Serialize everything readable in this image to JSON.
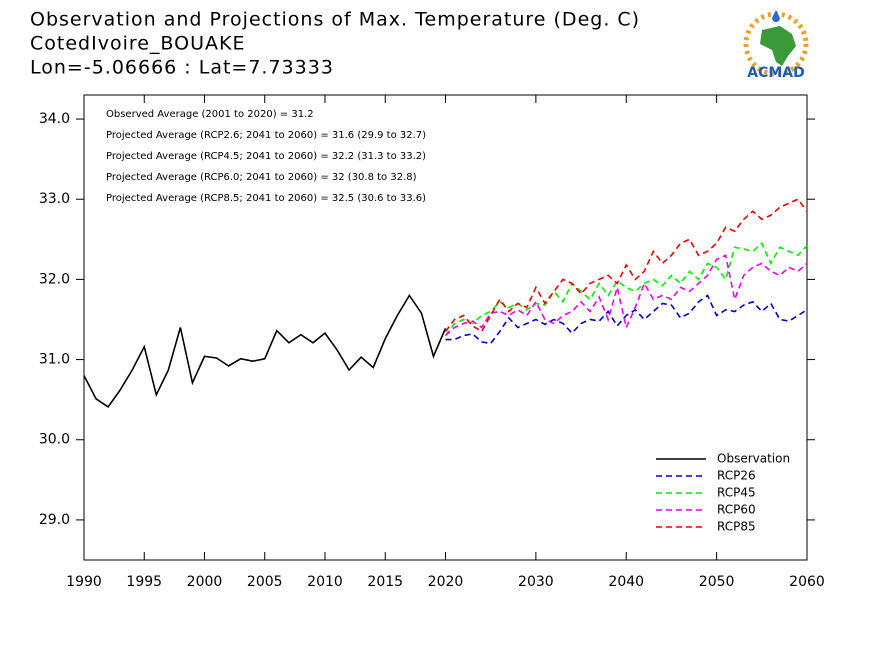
{
  "chart_data": {
    "type": "line",
    "title": "Observation and Projections of Max. Temperature (Deg. C)",
    "subtitle": "CotedIvoire_BOUAKE",
    "location": "Lon=-5.06666 : Lat=7.73333",
    "logo": "ACMAD",
    "annotations": [
      "Observed Average (2001 to 2020) = 31.2",
      "Projected Average (RCP2.6; 2041 to 2060) = 31.6 (29.9 to 32.7)",
      "Projected Average (RCP4.5; 2041 to 2060) = 32.2 (31.3 to 33.2)",
      "Projected Average (RCP6.0; 2041 to 2060) = 32 (30.8 to 32.8)",
      "Projected Average (RCP8.5; 2041 to 2060) = 32.5 (30.6 to 33.6)"
    ],
    "xlim": [
      1990,
      2060
    ],
    "xsplit": 2020,
    "xticks": [
      1990,
      1995,
      2000,
      2005,
      2010,
      2015,
      2020,
      2030,
      2040,
      2050,
      2060
    ],
    "ylim": [
      28.5,
      34.3
    ],
    "yticks": [
      {
        "value": 29,
        "label": "29.0"
      },
      {
        "value": 30,
        "label": "30.0"
      },
      {
        "value": 31,
        "label": "31.0"
      },
      {
        "value": 32,
        "label": "32.0"
      },
      {
        "value": 33,
        "label": "33.0"
      },
      {
        "value": 34,
        "label": "34.0"
      }
    ],
    "grid": false,
    "legend": "lower right",
    "series": [
      {
        "name": "Observation",
        "color": "#000000",
        "dash": false,
        "x": [
          1990,
          1991,
          1992,
          1993,
          1994,
          1995,
          1996,
          1997,
          1998,
          1999,
          2000,
          2001,
          2002,
          2003,
          2004,
          2005,
          2006,
          2007,
          2008,
          2009,
          2010,
          2011,
          2012,
          2013,
          2014,
          2015,
          2016,
          2017,
          2018,
          2019,
          2020
        ],
        "values": [
          30.8,
          30.51,
          30.41,
          30.62,
          30.87,
          31.16,
          30.56,
          30.87,
          31.4,
          30.71,
          31.04,
          31.02,
          30.92,
          31.01,
          30.98,
          31.01,
          31.36,
          31.21,
          31.31,
          31.21,
          31.33,
          31.12,
          30.87,
          31.03,
          30.9,
          31.26,
          31.55,
          31.8,
          31.58,
          31.04,
          31.39
        ]
      },
      {
        "name": "RCP26",
        "color": "#0000cc",
        "dash": true,
        "x": [
          2020,
          2021,
          2022,
          2023,
          2024,
          2025,
          2026,
          2027,
          2028,
          2029,
          2030,
          2031,
          2032,
          2033,
          2034,
          2035,
          2036,
          2037,
          2038,
          2039,
          2040,
          2041,
          2042,
          2043,
          2044,
          2045,
          2046,
          2047,
          2048,
          2049,
          2050,
          2051,
          2052,
          2053,
          2054,
          2055,
          2056,
          2057,
          2058,
          2059,
          2060
        ],
        "values": [
          31.25,
          31.25,
          31.3,
          31.32,
          31.22,
          31.2,
          31.35,
          31.52,
          31.4,
          31.45,
          31.5,
          31.44,
          31.5,
          31.45,
          31.33,
          31.45,
          31.5,
          31.48,
          31.6,
          31.42,
          31.55,
          31.62,
          31.5,
          31.6,
          31.7,
          31.68,
          31.52,
          31.58,
          31.72,
          31.8,
          31.55,
          31.62,
          31.6,
          31.68,
          31.72,
          31.6,
          31.7,
          31.5,
          31.48,
          31.55,
          31.62
        ]
      },
      {
        "name": "RCP45",
        "color": "#00ee00",
        "dash": true,
        "x": [
          2020,
          2021,
          2022,
          2023,
          2024,
          2025,
          2026,
          2027,
          2028,
          2029,
          2030,
          2031,
          2032,
          2033,
          2034,
          2035,
          2036,
          2037,
          2038,
          2039,
          2040,
          2041,
          2042,
          2043,
          2044,
          2045,
          2046,
          2047,
          2048,
          2049,
          2050,
          2051,
          2052,
          2053,
          2054,
          2055,
          2056,
          2057,
          2058,
          2059,
          2060
        ],
        "values": [
          31.3,
          31.45,
          31.5,
          31.45,
          31.55,
          31.6,
          31.72,
          31.65,
          31.7,
          31.62,
          31.7,
          31.68,
          31.85,
          31.72,
          31.95,
          31.85,
          31.75,
          31.95,
          31.8,
          31.98,
          31.9,
          31.85,
          31.95,
          32.0,
          31.92,
          32.05,
          31.95,
          32.1,
          32.0,
          32.2,
          32.15,
          32.0,
          32.4,
          32.38,
          32.35,
          32.45,
          32.2,
          32.4,
          32.35,
          32.3,
          32.42
        ]
      },
      {
        "name": "RCP60",
        "color": "#ee00ee",
        "dash": true,
        "x": [
          2020,
          2021,
          2022,
          2023,
          2024,
          2025,
          2026,
          2027,
          2028,
          2029,
          2030,
          2031,
          2032,
          2033,
          2034,
          2035,
          2036,
          2037,
          2038,
          2039,
          2040,
          2041,
          2042,
          2043,
          2044,
          2045,
          2046,
          2047,
          2048,
          2049,
          2050,
          2051,
          2052,
          2053,
          2054,
          2055,
          2056,
          2057,
          2058,
          2059,
          2060
        ],
        "values": [
          31.3,
          31.4,
          31.45,
          31.48,
          31.4,
          31.58,
          31.6,
          31.55,
          31.62,
          31.55,
          31.72,
          31.5,
          31.45,
          31.55,
          31.6,
          31.72,
          31.6,
          31.78,
          31.5,
          31.9,
          31.4,
          31.65,
          31.95,
          31.75,
          31.8,
          31.75,
          31.9,
          31.85,
          31.95,
          32.05,
          32.25,
          32.3,
          31.75,
          32.05,
          32.15,
          32.2,
          32.1,
          32.05,
          32.15,
          32.1,
          32.2
        ]
      },
      {
        "name": "RCP85",
        "color": "#ee0000",
        "dash": true,
        "x": [
          2020,
          2021,
          2022,
          2023,
          2024,
          2025,
          2026,
          2027,
          2028,
          2029,
          2030,
          2031,
          2032,
          2033,
          2034,
          2035,
          2036,
          2037,
          2038,
          2039,
          2040,
          2041,
          2042,
          2043,
          2044,
          2045,
          2046,
          2047,
          2048,
          2049,
          2050,
          2051,
          2052,
          2053,
          2054,
          2055,
          2056,
          2057,
          2058,
          2059,
          2060
        ],
        "values": [
          31.35,
          31.5,
          31.55,
          31.42,
          31.35,
          31.55,
          31.75,
          31.6,
          31.7,
          31.65,
          31.9,
          31.7,
          31.85,
          32.0,
          31.95,
          31.82,
          31.95,
          32.0,
          32.05,
          31.95,
          32.18,
          32.0,
          32.1,
          32.35,
          32.2,
          32.3,
          32.45,
          32.5,
          32.3,
          32.35,
          32.45,
          32.65,
          32.6,
          32.75,
          32.85,
          32.75,
          32.8,
          32.9,
          32.95,
          33.0,
          32.85
        ]
      }
    ]
  }
}
